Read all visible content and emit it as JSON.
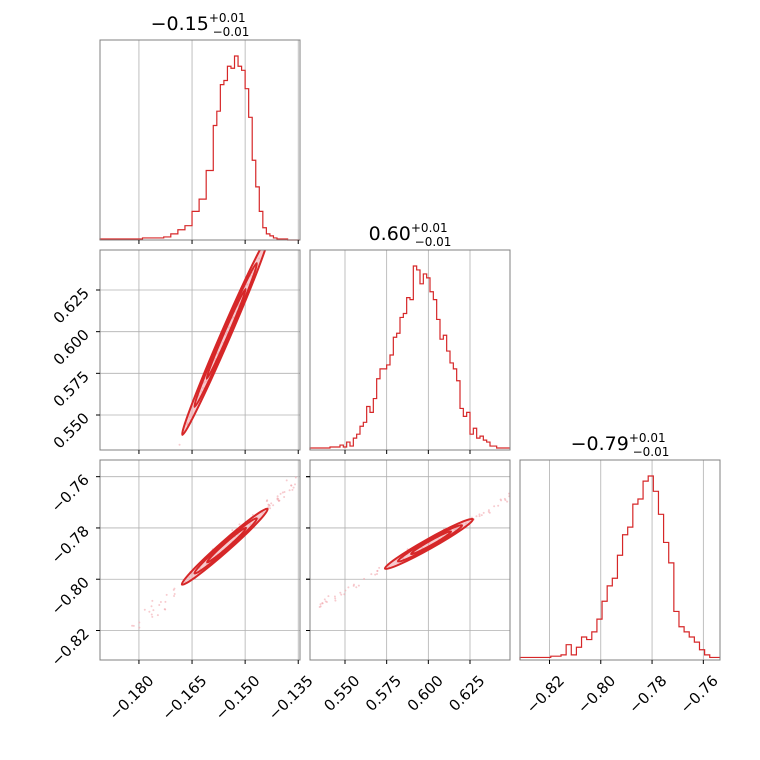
{
  "chart_data": {
    "type": "corner",
    "colors": {
      "line": "#d62728",
      "fill": "#f0a0a8",
      "grid": "#b0b0b0",
      "frame": "#808080"
    },
    "grid": true,
    "parameters": [
      {
        "id": "p1",
        "title_value": "−0.15",
        "title_plus": "+0.01",
        "title_minus": "−0.01",
        "range": [
          -0.191,
          -0.1345
        ],
        "ticks": [
          -0.18,
          -0.165,
          -0.15,
          -0.135
        ],
        "tick_labels": [
          "−0.180",
          "−0.165",
          "−0.150",
          "−0.135"
        ]
      },
      {
        "id": "p2",
        "title_value": "0.60",
        "title_plus": "+0.01",
        "title_minus": "−0.01",
        "range": [
          0.529,
          0.649
        ],
        "ticks": [
          0.55,
          0.575,
          0.6,
          0.625
        ],
        "tick_labels": [
          "0.550",
          "0.575",
          "0.600",
          "0.625"
        ]
      },
      {
        "id": "p3",
        "title_value": "−0.79",
        "title_plus": "+0.01",
        "title_minus": "−0.01",
        "range": [
          -0.8315,
          -0.7535
        ],
        "ticks": [
          -0.82,
          -0.8,
          -0.78,
          -0.76
        ],
        "tick_labels": [
          "−0.82",
          "−0.80",
          "−0.78",
          "−0.76"
        ]
      }
    ],
    "histograms": [
      {
        "param": "p1",
        "bins": [
          -0.191,
          -0.189,
          -0.187,
          -0.185,
          -0.183,
          -0.181,
          -0.179,
          -0.177,
          -0.175,
          -0.173,
          -0.171,
          -0.169,
          -0.167,
          -0.165,
          -0.163,
          -0.161,
          -0.159,
          -0.158,
          -0.157,
          -0.156,
          -0.155,
          -0.154,
          -0.153,
          -0.152,
          -0.151,
          -0.15,
          -0.149,
          -0.148,
          -0.147,
          -0.146,
          -0.145,
          -0.144,
          -0.143,
          -0.142,
          -0.141,
          -0.14,
          -0.138,
          -0.1345
        ],
        "counts": [
          0.5,
          0.5,
          0.5,
          0.5,
          0.5,
          0.5,
          1,
          1,
          1,
          1.5,
          3,
          5,
          7,
          14,
          20,
          34,
          56,
          63,
          76,
          78,
          85,
          84,
          90,
          85,
          83,
          74,
          60,
          39,
          26,
          14,
          6,
          3,
          2,
          1,
          0.5,
          0.5,
          0
        ]
      },
      {
        "param": "p2",
        "bins": [
          0.529,
          0.531,
          0.533,
          0.535,
          0.537,
          0.539,
          0.541,
          0.543,
          0.545,
          0.547,
          0.549,
          0.551,
          0.553,
          0.555,
          0.557,
          0.559,
          0.561,
          0.563,
          0.565,
          0.567,
          0.569,
          0.571,
          0.573,
          0.575,
          0.577,
          0.579,
          0.581,
          0.583,
          0.585,
          0.587,
          0.589,
          0.591,
          0.593,
          0.595,
          0.597,
          0.599,
          0.601,
          0.603,
          0.605,
          0.607,
          0.609,
          0.611,
          0.613,
          0.615,
          0.617,
          0.619,
          0.621,
          0.623,
          0.625,
          0.627,
          0.629,
          0.631,
          0.633,
          0.635,
          0.637,
          0.639,
          0.641,
          0.643,
          0.645,
          0.647,
          0.649
        ],
        "counts": [
          1,
          1,
          1,
          1,
          1,
          1,
          1.5,
          1.5,
          1.5,
          2.5,
          1.5,
          4,
          2,
          6,
          8,
          12,
          14,
          22,
          19,
          26,
          36,
          41,
          41,
          43,
          48,
          57,
          59,
          67,
          69,
          77,
          76,
          93,
          91,
          84,
          89,
          87,
          80,
          76,
          66,
          56,
          58,
          50,
          44,
          41,
          35,
          21,
          17,
          19,
          8,
          11,
          6,
          7,
          5,
          4,
          2,
          2,
          1,
          1,
          1,
          1
        ]
      },
      {
        "param": "p3",
        "bins": [
          -0.8315,
          -0.8295,
          -0.8275,
          -0.8255,
          -0.8235,
          -0.8215,
          -0.8195,
          -0.8175,
          -0.8155,
          -0.8135,
          -0.8115,
          -0.8095,
          -0.8075,
          -0.8055,
          -0.8035,
          -0.8015,
          -0.7995,
          -0.7975,
          -0.7955,
          -0.7935,
          -0.7915,
          -0.7895,
          -0.7875,
          -0.7855,
          -0.7835,
          -0.7815,
          -0.7795,
          -0.7775,
          -0.7755,
          -0.7735,
          -0.7715,
          -0.7695,
          -0.7675,
          -0.7655,
          -0.7635,
          -0.7615,
          -0.7595,
          -0.7575,
          -0.7555,
          -0.7535
        ],
        "counts": [
          1,
          1,
          1,
          1,
          1,
          1,
          1.5,
          1.5,
          2,
          6,
          2,
          5,
          9,
          8,
          11,
          16,
          23,
          29,
          32,
          41,
          49,
          52,
          61,
          63,
          70,
          72,
          66,
          57,
          46,
          38,
          19,
          13,
          11,
          9,
          7,
          4,
          2,
          1,
          1
        ]
      }
    ],
    "pairs": [
      {
        "x": "p1",
        "y": "p2",
        "slope": 4.9,
        "anchor": [
          -0.155,
          0.6
        ],
        "line_x": [
          -0.182,
          -0.1345
        ],
        "ellipse_center": [
          -0.1555,
          0.598
        ],
        "ellipse_sigma_along": 0.0055,
        "ellipse_sigma_across": 0.0009,
        "contour_levels": [
          1.0,
          1.6,
          2.2
        ]
      },
      {
        "x": "p1",
        "y": "p3",
        "slope": 1.22,
        "anchor": [
          -0.155,
          -0.786
        ],
        "line_x": [
          -0.182,
          -0.1345
        ],
        "ellipse_center": [
          -0.1555,
          -0.787
        ],
        "ellipse_sigma_along": 0.0055,
        "ellipse_sigma_across": 0.0012,
        "contour_levels": [
          1.0,
          1.6,
          2.2
        ]
      },
      {
        "x": "p2",
        "y": "p3",
        "slope": 0.365,
        "anchor": [
          0.6,
          -0.786
        ],
        "line_x": [
          0.534,
          0.649
        ],
        "ellipse_center": [
          0.601,
          -0.786
        ],
        "ellipse_sigma_along": 0.012,
        "ellipse_sigma_across": 0.0006,
        "contour_levels": [
          1.0,
          1.6,
          2.2
        ]
      }
    ]
  }
}
